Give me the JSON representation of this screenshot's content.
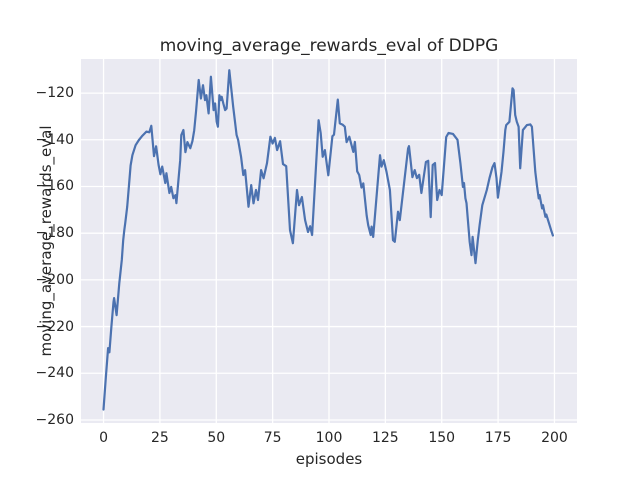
{
  "chart_data": {
    "type": "line",
    "title": "moving_average_rewards_eval of DDPG",
    "xlabel": "episodes",
    "ylabel": "moving_average_rewards_eval",
    "xlim": [
      -10,
      210
    ],
    "ylim": [
      -261.3,
      -105.4
    ],
    "xticks": [
      0,
      25,
      50,
      75,
      100,
      125,
      150,
      175,
      200
    ],
    "xtick_labels": [
      "0",
      "25",
      "50",
      "75",
      "100",
      "125",
      "150",
      "175",
      "200"
    ],
    "yticks": [
      -120,
      -140,
      -160,
      -180,
      -200,
      -220,
      -240,
      -260
    ],
    "ytick_labels": [
      "−120",
      "−140",
      "−160",
      "−180",
      "−200",
      "−220",
      "−240",
      "−260"
    ],
    "grid": true,
    "legend": "none",
    "colors": {
      "line": "#4C72B0",
      "axes_background": "#EAEAF2",
      "grid": "#FFFFFF",
      "figure_background": "#FFFFFF",
      "text": "#262626"
    },
    "series": [
      {
        "name": "moving_average_rewards_eval",
        "points": [
          [
            0,
            -255.5
          ],
          [
            1,
            -242
          ],
          [
            2,
            -229.2
          ],
          [
            2.6,
            -231
          ],
          [
            3.5,
            -220
          ],
          [
            4.4,
            -209.5
          ],
          [
            4.7,
            -207.8
          ],
          [
            5.8,
            -215.1
          ],
          [
            7,
            -201.4
          ],
          [
            8.1,
            -191.5
          ],
          [
            8.7,
            -183
          ],
          [
            9.2,
            -178.7
          ],
          [
            9.6,
            -175.8
          ],
          [
            10.5,
            -168.7
          ],
          [
            11.3,
            -159.4
          ],
          [
            12,
            -151
          ],
          [
            12.8,
            -146.6
          ],
          [
            14.2,
            -142.3
          ],
          [
            15.7,
            -140.1
          ],
          [
            17,
            -138.5
          ],
          [
            19,
            -136.5
          ],
          [
            20.3,
            -136.8
          ],
          [
            21.2,
            -134
          ],
          [
            22.4,
            -147
          ],
          [
            23.3,
            -142.8
          ],
          [
            24.4,
            -150.8
          ],
          [
            25.2,
            -154.8
          ],
          [
            26,
            -151.5
          ],
          [
            27.4,
            -158.5
          ],
          [
            27.9,
            -154.3
          ],
          [
            29.2,
            -162.8
          ],
          [
            30,
            -160.2
          ],
          [
            31,
            -165
          ],
          [
            31.9,
            -163.7
          ],
          [
            32.3,
            -167.1
          ],
          [
            34,
            -148.7
          ],
          [
            34.5,
            -138
          ],
          [
            35.4,
            -135.8
          ],
          [
            36.3,
            -145.3
          ],
          [
            37.2,
            -141
          ],
          [
            38.5,
            -143.6
          ],
          [
            39.4,
            -140.6
          ],
          [
            40.2,
            -136
          ],
          [
            41,
            -128
          ],
          [
            42.2,
            -114.4
          ],
          [
            43.2,
            -122.3
          ],
          [
            44.1,
            -116.6
          ],
          [
            45,
            -123
          ],
          [
            45.6,
            -120.9
          ],
          [
            46.6,
            -128.7
          ],
          [
            47.6,
            -113
          ],
          [
            48.8,
            -127.3
          ],
          [
            49.5,
            -124.4
          ],
          [
            50.2,
            -132.3
          ],
          [
            50.7,
            -134.4
          ],
          [
            51.4,
            -120.9
          ],
          [
            52,
            -123
          ],
          [
            52.4,
            -121.6
          ],
          [
            53.1,
            -124.4
          ],
          [
            53.9,
            -127.3
          ],
          [
            54.6,
            -126.6
          ],
          [
            55.8,
            -110.2
          ],
          [
            56.8,
            -119.4
          ],
          [
            57.5,
            -125.9
          ],
          [
            58.3,
            -132.3
          ],
          [
            59,
            -138
          ],
          [
            59.7,
            -140
          ],
          [
            61,
            -147.4
          ],
          [
            62,
            -155.1
          ],
          [
            62.8,
            -153
          ],
          [
            64.3,
            -168.7
          ],
          [
            65.5,
            -159.4
          ],
          [
            66.5,
            -167.2
          ],
          [
            67.6,
            -161.5
          ],
          [
            68.5,
            -165.8
          ],
          [
            69.9,
            -153
          ],
          [
            71,
            -156.5
          ],
          [
            72.5,
            -150
          ],
          [
            74,
            -138.7
          ],
          [
            75,
            -141.6
          ],
          [
            76,
            -139.2
          ],
          [
            77,
            -144.4
          ],
          [
            78.3,
            -140.6
          ],
          [
            79.6,
            -150.4
          ],
          [
            81,
            -151.3
          ],
          [
            82.7,
            -178.7
          ],
          [
            84,
            -184.3
          ],
          [
            85.8,
            -161.5
          ],
          [
            86.7,
            -168
          ],
          [
            88,
            -164.5
          ],
          [
            89.4,
            -174.4
          ],
          [
            90.7,
            -179.5
          ],
          [
            91.6,
            -177
          ],
          [
            92.5,
            -180.8
          ],
          [
            95.4,
            -131.6
          ],
          [
            96.3,
            -137.2
          ],
          [
            97.2,
            -147.3
          ],
          [
            98.2,
            -144.4
          ],
          [
            99.7,
            -155.2
          ],
          [
            101.5,
            -138.5
          ],
          [
            102.2,
            -137.8
          ],
          [
            103.9,
            -122.8
          ],
          [
            104.8,
            -133
          ],
          [
            106,
            -133.5
          ],
          [
            107,
            -134.4
          ],
          [
            107.8,
            -141
          ],
          [
            109,
            -138.7
          ],
          [
            110.8,
            -145.2
          ],
          [
            111.5,
            -140.9
          ],
          [
            112.5,
            -153.5
          ],
          [
            113.4,
            -155.1
          ],
          [
            114.4,
            -160.5
          ],
          [
            115.2,
            -158.7
          ],
          [
            116.7,
            -172.5
          ],
          [
            117.4,
            -176.6
          ],
          [
            118.5,
            -180.8
          ],
          [
            118.9,
            -177.2
          ],
          [
            119.6,
            -181.6
          ],
          [
            122.6,
            -146.6
          ],
          [
            123.3,
            -151.5
          ],
          [
            124.3,
            -148.7
          ],
          [
            125.5,
            -153.7
          ],
          [
            127,
            -161.5
          ],
          [
            128.4,
            -183
          ],
          [
            129.2,
            -183.7
          ],
          [
            130.6,
            -170.8
          ],
          [
            131.4,
            -174.4
          ],
          [
            135.1,
            -143.7
          ],
          [
            135.5,
            -142.7
          ],
          [
            137,
            -156
          ],
          [
            138,
            -153
          ],
          [
            139,
            -156.4
          ],
          [
            140,
            -155
          ],
          [
            141,
            -162.8
          ],
          [
            143,
            -149.5
          ],
          [
            144,
            -149
          ],
          [
            145.1,
            -173.1
          ],
          [
            146,
            -150.8
          ],
          [
            147,
            -150
          ],
          [
            148,
            -165.8
          ],
          [
            149,
            -161.5
          ],
          [
            150,
            -163.7
          ],
          [
            152,
            -138.8
          ],
          [
            153,
            -137.1
          ],
          [
            155,
            -137.5
          ],
          [
            157,
            -140
          ],
          [
            158.3,
            -150
          ],
          [
            159,
            -156.4
          ],
          [
            159.4,
            -160.2
          ],
          [
            159.9,
            -158.5
          ],
          [
            160.5,
            -165
          ],
          [
            161,
            -167.1
          ],
          [
            162.4,
            -183.8
          ],
          [
            163.2,
            -189.4
          ],
          [
            163.7,
            -181.6
          ],
          [
            165,
            -192.8
          ],
          [
            166,
            -183
          ],
          [
            166.8,
            -176.6
          ],
          [
            168,
            -168
          ],
          [
            170,
            -161.5
          ],
          [
            171.2,
            -156.4
          ],
          [
            172.5,
            -151.7
          ],
          [
            173.4,
            -150
          ],
          [
            174.3,
            -156.4
          ],
          [
            174.9,
            -164.8
          ],
          [
            176.5,
            -153.8
          ],
          [
            177.4,
            -145.1
          ],
          [
            178.2,
            -135.8
          ],
          [
            178.6,
            -133.7
          ],
          [
            180,
            -132.3
          ],
          [
            181.4,
            -118
          ],
          [
            181.9,
            -118.7
          ],
          [
            182.6,
            -129.4
          ],
          [
            183.3,
            -132.3
          ],
          [
            184.1,
            -134.4
          ],
          [
            184.8,
            -152.2
          ],
          [
            186,
            -135.8
          ],
          [
            187.8,
            -133.7
          ],
          [
            189.3,
            -133.4
          ],
          [
            190,
            -134.4
          ],
          [
            191.5,
            -153.7
          ],
          [
            192.2,
            -159.4
          ],
          [
            193,
            -165.1
          ],
          [
            193.4,
            -163.7
          ],
          [
            194.5,
            -169.4
          ],
          [
            194.9,
            -168
          ],
          [
            196,
            -173
          ],
          [
            196.4,
            -172
          ],
          [
            198.5,
            -178.7
          ],
          [
            199.3,
            -181
          ]
        ]
      }
    ]
  }
}
